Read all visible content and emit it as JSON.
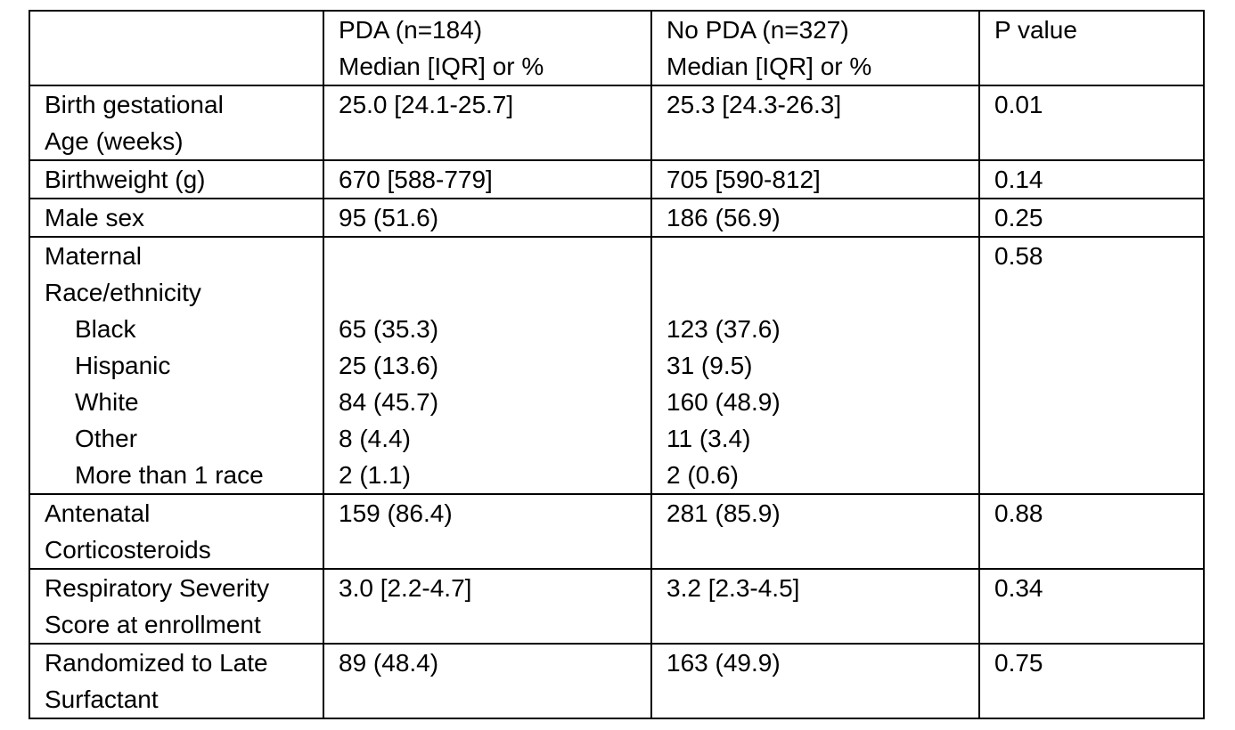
{
  "header": {
    "col1": "",
    "col2_line1": "PDA (n=184)",
    "col2_line2": "Median [IQR] or %",
    "col3_line1": "No PDA (n=327)",
    "col3_line2": "Median [IQR] or %",
    "col4": "P value"
  },
  "rows": [
    {
      "label_lines": [
        "Birth gestational",
        "Age (weeks)"
      ],
      "pda": "25.0 [24.1-25.7]",
      "no_pda": "25.3 [24.3-26.3]",
      "p": "0.01"
    },
    {
      "label_lines": [
        "Birthweight (g)"
      ],
      "pda": "670 [588-779]",
      "no_pda": "705 [590-812]",
      "p": "0.14"
    },
    {
      "label_lines": [
        "Male sex"
      ],
      "pda": "95 (51.6)",
      "no_pda": "186 (56.9)",
      "p": "0.25"
    }
  ],
  "race": {
    "label_lines": [
      "Maternal",
      "Race/ethnicity"
    ],
    "p": "0.58",
    "subrows": [
      {
        "label": "Black",
        "pda": "65 (35.3)",
        "no_pda": "123 (37.6)"
      },
      {
        "label": "Hispanic",
        "pda": "25 (13.6)",
        "no_pda": "31 (9.5)"
      },
      {
        "label": "White",
        "pda": "84 (45.7)",
        "no_pda": "160 (48.9)"
      },
      {
        "label": "Other",
        "pda": "8 (4.4)",
        "no_pda": "11 (3.4)"
      },
      {
        "label": "More than 1 race",
        "pda": "2 (1.1)",
        "no_pda": "2 (0.6)"
      }
    ]
  },
  "rows2": [
    {
      "label_lines": [
        "Antenatal",
        "Corticosteroids"
      ],
      "pda": "159 (86.4)",
      "no_pda": "281 (85.9)",
      "p": "0.88"
    },
    {
      "label_lines": [
        "Respiratory Severity",
        "Score at enrollment"
      ],
      "pda": "3.0 [2.2-4.7]",
      "no_pda": "3.2 [2.3-4.5]",
      "p": "0.34"
    },
    {
      "label_lines": [
        "Randomized to Late",
        "Surfactant"
      ],
      "pda": "89 (48.4)",
      "no_pda": "163 (49.9)",
      "p": "0.75"
    }
  ]
}
